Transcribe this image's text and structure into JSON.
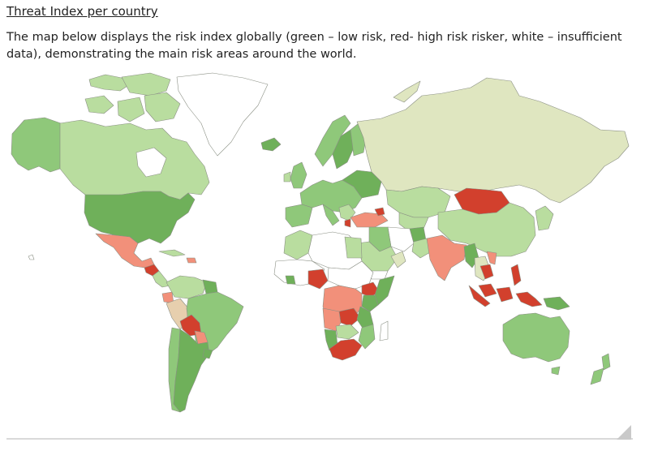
{
  "header": {
    "title": "Threat Index per country",
    "description": "The map below displays the risk index globally (green – low risk, red- high risk risker, white – insufficient data), demonstrating the main risk areas around the world."
  },
  "legend_colors": {
    "low_risk": "#8fc87a",
    "very_low_risk": "#b9dd9f",
    "lowest_risk": "#dfe6c0",
    "medium_low": "#6fb05a",
    "medium_high": "#f2907a",
    "high_risk": "#d2402d",
    "insufficient_data": "#ffffff"
  }
}
